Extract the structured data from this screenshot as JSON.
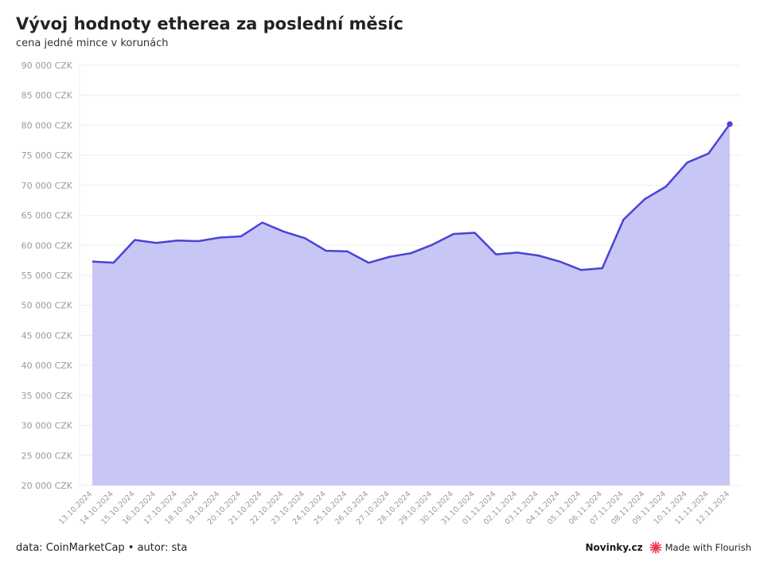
{
  "header": {
    "title": "Vývoj hodnoty etherea za poslední měsíc",
    "subtitle": "cena jedné mince v korunách"
  },
  "footer": {
    "source": "data: CoinMarketCap • autor: sta",
    "brand": "Novinky.cz",
    "flourish": "Made with Flourish"
  },
  "colors": {
    "line": "#4a43d6",
    "area": "#c8c6f5",
    "grid": "#eeeeee",
    "flourish_icon": "#e8344e"
  },
  "chart_data": {
    "type": "area",
    "ylim": [
      20000,
      90000
    ],
    "y_ticks": [
      {
        "value": 20000,
        "label": "20 000 CZK"
      },
      {
        "value": 25000,
        "label": "25 000 CZK"
      },
      {
        "value": 30000,
        "label": "30 000 CZK"
      },
      {
        "value": 35000,
        "label": "35 000 CZK"
      },
      {
        "value": 40000,
        "label": "40 000 CZK"
      },
      {
        "value": 45000,
        "label": "45 000 CZK"
      },
      {
        "value": 50000,
        "label": "50 000 CZK"
      },
      {
        "value": 55000,
        "label": "55 000 CZK"
      },
      {
        "value": 60000,
        "label": "60 000 CZK"
      },
      {
        "value": 65000,
        "label": "65 000 CZK"
      },
      {
        "value": 70000,
        "label": "70 000 CZK"
      },
      {
        "value": 75000,
        "label": "75 000 CZK"
      },
      {
        "value": 80000,
        "label": "80 000 CZK"
      },
      {
        "value": 85000,
        "label": "85 000 CZK"
      },
      {
        "value": 90000,
        "label": "90 000 CZK"
      }
    ],
    "grid": true,
    "categories": [
      "13.10.2024",
      "14.10.2024",
      "15.10.2024",
      "16.10.2024",
      "17.10.2024",
      "18.10.2024",
      "19.10.2024",
      "20.10.2024",
      "21.10.2024",
      "22.10.2024",
      "23.10.2024",
      "24.10.2024",
      "25.10.2024",
      "26.10.2024",
      "27.10.2024",
      "28.10.2024",
      "29.10.2024",
      "30.10.2024",
      "31.10.2024",
      "01.11.2024",
      "02.11.2024",
      "03.11.2024",
      "04.11.2024",
      "05.11.2024",
      "06.11.2024",
      "07.11.2024",
      "08.11.2024",
      "09.11.2024",
      "10.11.2024",
      "11.11.2024",
      "12.11.2024"
    ],
    "values": [
      57300,
      57100,
      60900,
      60400,
      60800,
      60700,
      61300,
      61500,
      63800,
      62300,
      61200,
      59100,
      59000,
      57100,
      58100,
      58700,
      60100,
      61900,
      62100,
      58500,
      58800,
      58300,
      57300,
      55900,
      56200,
      64300,
      67700,
      69800,
      73800,
      75300,
      80200
    ]
  }
}
